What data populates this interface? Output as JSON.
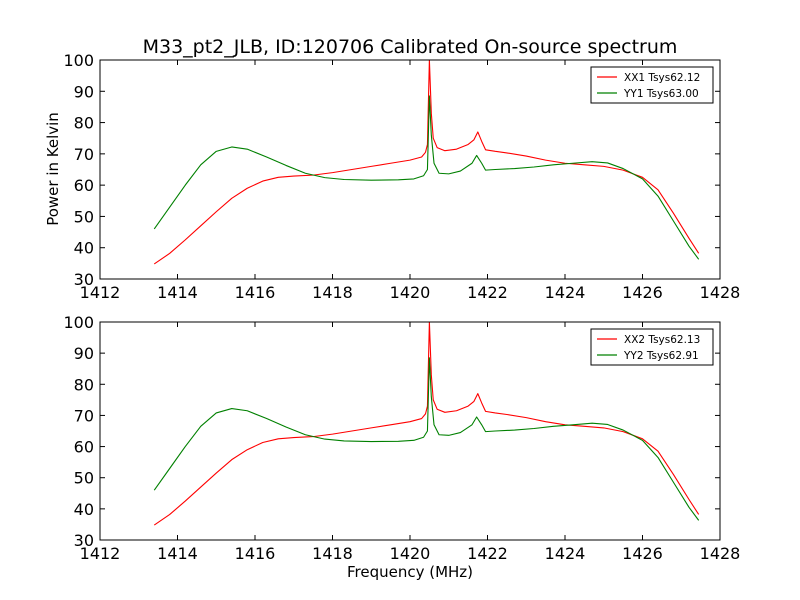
{
  "chart_data": {
    "title": "M33_pt2_JLB, ID:120706 Calibrated On-source spectrum",
    "type": "line",
    "xlabel": "Frequency (MHz)",
    "ylabel": "Power in Kelvin",
    "xlim": [
      1412,
      1428
    ],
    "ylim": [
      30,
      100
    ],
    "xticks": [
      "1412",
      "1414",
      "1416",
      "1418",
      "1420",
      "1422",
      "1424",
      "1426",
      "1428"
    ],
    "yticks": [
      "30",
      "40",
      "50",
      "60",
      "70",
      "80",
      "90",
      "100"
    ],
    "grid": false,
    "legend_position": "top-right",
    "colors": {
      "red": "#ff0000",
      "green": "#008000"
    },
    "panels": [
      {
        "series": [
          {
            "name": "XX1 Tsys62.12",
            "color": "#ff0000",
            "points": [
              [
                1413.4,
                34.8
              ],
              [
                1413.8,
                38.2
              ],
              [
                1414.2,
                42.5
              ],
              [
                1414.6,
                47.0
              ],
              [
                1415.0,
                51.5
              ],
              [
                1415.4,
                55.8
              ],
              [
                1415.8,
                59.0
              ],
              [
                1416.2,
                61.3
              ],
              [
                1416.6,
                62.5
              ],
              [
                1417.0,
                62.9
              ],
              [
                1417.5,
                63.2
              ],
              [
                1418.0,
                64.0
              ],
              [
                1418.5,
                65.0
              ],
              [
                1419.0,
                66.0
              ],
              [
                1419.5,
                67.0
              ],
              [
                1420.0,
                68.0
              ],
              [
                1420.3,
                69.0
              ],
              [
                1420.4,
                70.5
              ],
              [
                1420.45,
                73.0
              ],
              [
                1420.5,
                100.0
              ],
              [
                1420.55,
                83.0
              ],
              [
                1420.6,
                75.0
              ],
              [
                1420.7,
                72.0
              ],
              [
                1420.9,
                71.0
              ],
              [
                1421.2,
                71.5
              ],
              [
                1421.5,
                73.0
              ],
              [
                1421.65,
                74.5
              ],
              [
                1421.75,
                77.0
              ],
              [
                1421.85,
                74.0
              ],
              [
                1421.95,
                71.3
              ],
              [
                1422.2,
                70.8
              ],
              [
                1422.5,
                70.3
              ],
              [
                1423.0,
                69.3
              ],
              [
                1423.5,
                68.0
              ],
              [
                1424.0,
                67.0
              ],
              [
                1424.5,
                66.5
              ],
              [
                1425.0,
                66.0
              ],
              [
                1425.5,
                64.8
              ],
              [
                1426.0,
                62.5
              ],
              [
                1426.4,
                58.5
              ],
              [
                1426.8,
                51.0
              ],
              [
                1427.2,
                43.0
              ],
              [
                1427.45,
                38.2
              ]
            ]
          },
          {
            "name": "YY1 Tsys63.00",
            "color": "#008000",
            "points": [
              [
                1413.4,
                46.0
              ],
              [
                1413.8,
                53.0
              ],
              [
                1414.2,
                60.0
              ],
              [
                1414.6,
                66.5
              ],
              [
                1415.0,
                70.8
              ],
              [
                1415.4,
                72.2
              ],
              [
                1415.8,
                71.5
              ],
              [
                1416.3,
                69.0
              ],
              [
                1416.8,
                66.3
              ],
              [
                1417.3,
                63.8
              ],
              [
                1417.8,
                62.4
              ],
              [
                1418.3,
                61.8
              ],
              [
                1419.0,
                61.6
              ],
              [
                1419.7,
                61.7
              ],
              [
                1420.1,
                62.0
              ],
              [
                1420.35,
                63.0
              ],
              [
                1420.45,
                65.0
              ],
              [
                1420.5,
                88.5
              ],
              [
                1420.55,
                76.0
              ],
              [
                1420.62,
                67.0
              ],
              [
                1420.75,
                63.8
              ],
              [
                1421.0,
                63.6
              ],
              [
                1421.3,
                64.5
              ],
              [
                1421.6,
                67.0
              ],
              [
                1421.72,
                69.5
              ],
              [
                1421.85,
                67.0
              ],
              [
                1421.95,
                64.8
              ],
              [
                1422.2,
                65.0
              ],
              [
                1422.7,
                65.3
              ],
              [
                1423.2,
                65.8
              ],
              [
                1423.7,
                66.5
              ],
              [
                1424.2,
                67.0
              ],
              [
                1424.7,
                67.5
              ],
              [
                1425.1,
                67.1
              ],
              [
                1425.5,
                65.3
              ],
              [
                1426.0,
                62.0
              ],
              [
                1426.4,
                56.5
              ],
              [
                1426.8,
                48.5
              ],
              [
                1427.2,
                40.5
              ],
              [
                1427.45,
                36.3
              ]
            ]
          }
        ]
      },
      {
        "series": [
          {
            "name": "XX2 Tsys62.13",
            "color": "#ff0000",
            "points": [
              [
                1413.4,
                34.8
              ],
              [
                1413.8,
                38.2
              ],
              [
                1414.2,
                42.5
              ],
              [
                1414.6,
                47.0
              ],
              [
                1415.0,
                51.5
              ],
              [
                1415.4,
                55.8
              ],
              [
                1415.8,
                59.0
              ],
              [
                1416.2,
                61.3
              ],
              [
                1416.6,
                62.5
              ],
              [
                1417.0,
                62.9
              ],
              [
                1417.5,
                63.2
              ],
              [
                1418.0,
                64.0
              ],
              [
                1418.5,
                65.0
              ],
              [
                1419.0,
                66.0
              ],
              [
                1419.5,
                67.0
              ],
              [
                1420.0,
                68.0
              ],
              [
                1420.3,
                69.0
              ],
              [
                1420.4,
                70.5
              ],
              [
                1420.45,
                73.0
              ],
              [
                1420.5,
                100.0
              ],
              [
                1420.55,
                83.0
              ],
              [
                1420.6,
                75.0
              ],
              [
                1420.7,
                72.0
              ],
              [
                1420.9,
                71.0
              ],
              [
                1421.2,
                71.5
              ],
              [
                1421.5,
                73.0
              ],
              [
                1421.65,
                74.5
              ],
              [
                1421.75,
                77.0
              ],
              [
                1421.85,
                74.0
              ],
              [
                1421.95,
                71.3
              ],
              [
                1422.2,
                70.8
              ],
              [
                1422.5,
                70.3
              ],
              [
                1423.0,
                69.3
              ],
              [
                1423.5,
                68.0
              ],
              [
                1424.0,
                67.0
              ],
              [
                1424.5,
                66.5
              ],
              [
                1425.0,
                66.0
              ],
              [
                1425.5,
                64.8
              ],
              [
                1426.0,
                62.5
              ],
              [
                1426.4,
                58.5
              ],
              [
                1426.8,
                51.0
              ],
              [
                1427.2,
                43.0
              ],
              [
                1427.45,
                38.2
              ]
            ]
          },
          {
            "name": "YY2 Tsys62.91",
            "color": "#008000",
            "points": [
              [
                1413.4,
                46.0
              ],
              [
                1413.8,
                53.0
              ],
              [
                1414.2,
                60.0
              ],
              [
                1414.6,
                66.5
              ],
              [
                1415.0,
                70.8
              ],
              [
                1415.4,
                72.2
              ],
              [
                1415.8,
                71.5
              ],
              [
                1416.3,
                69.0
              ],
              [
                1416.8,
                66.3
              ],
              [
                1417.3,
                63.8
              ],
              [
                1417.8,
                62.4
              ],
              [
                1418.3,
                61.8
              ],
              [
                1419.0,
                61.6
              ],
              [
                1419.7,
                61.7
              ],
              [
                1420.1,
                62.0
              ],
              [
                1420.35,
                63.0
              ],
              [
                1420.45,
                65.0
              ],
              [
                1420.5,
                88.5
              ],
              [
                1420.55,
                76.0
              ],
              [
                1420.62,
                67.0
              ],
              [
                1420.75,
                63.8
              ],
              [
                1421.0,
                63.6
              ],
              [
                1421.3,
                64.5
              ],
              [
                1421.6,
                67.0
              ],
              [
                1421.72,
                69.5
              ],
              [
                1421.85,
                67.0
              ],
              [
                1421.95,
                64.8
              ],
              [
                1422.2,
                65.0
              ],
              [
                1422.7,
                65.3
              ],
              [
                1423.2,
                65.8
              ],
              [
                1423.7,
                66.5
              ],
              [
                1424.2,
                67.0
              ],
              [
                1424.7,
                67.5
              ],
              [
                1425.1,
                67.1
              ],
              [
                1425.5,
                65.3
              ],
              [
                1426.0,
                62.0
              ],
              [
                1426.4,
                56.5
              ],
              [
                1426.8,
                48.5
              ],
              [
                1427.2,
                40.5
              ],
              [
                1427.45,
                36.3
              ]
            ]
          }
        ]
      }
    ]
  }
}
